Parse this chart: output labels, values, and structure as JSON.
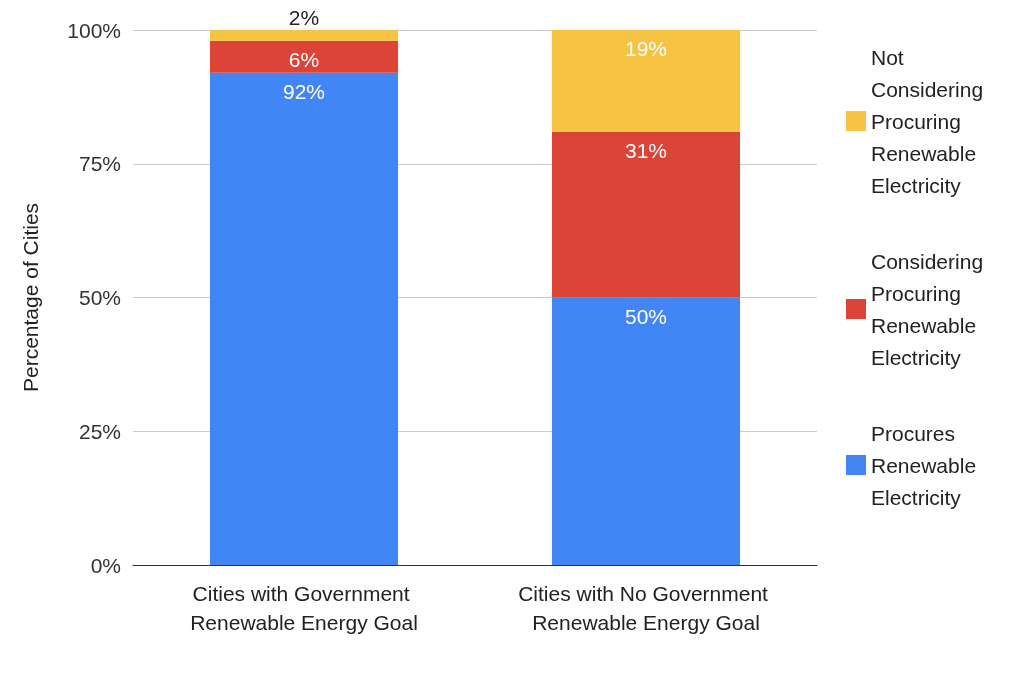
{
  "chart_data": {
    "type": "bar",
    "stacked": true,
    "ylabel": "Percentage of Cities",
    "categories": [
      "Cities with Government Renewable Energy Goal",
      "Cities with No Government Renewable Energy Goal"
    ],
    "series": [
      {
        "name": "Procures Renewable Electricity",
        "color": "#4285f4",
        "values": [
          92,
          50
        ],
        "value_labels": [
          "92%",
          "50%"
        ]
      },
      {
        "name": "Considering Procuring Renewable Electricity",
        "color": "#db4437",
        "values": [
          6,
          31
        ],
        "value_labels": [
          "6%",
          "31%"
        ]
      },
      {
        "name": "Not Considering Procuring Renewable Electricity",
        "color": "#f6c342",
        "values": [
          2,
          19
        ],
        "value_labels": [
          "2%",
          "19%"
        ]
      }
    ],
    "ylim": [
      0,
      100
    ],
    "yticks": [
      {
        "value": 0,
        "label": "0%"
      },
      {
        "value": 25,
        "label": "25%"
      },
      {
        "value": 50,
        "label": "50%"
      },
      {
        "value": 75,
        "label": "75%"
      },
      {
        "value": 100,
        "label": "100%"
      }
    ],
    "grid": "y",
    "legend": "right"
  }
}
